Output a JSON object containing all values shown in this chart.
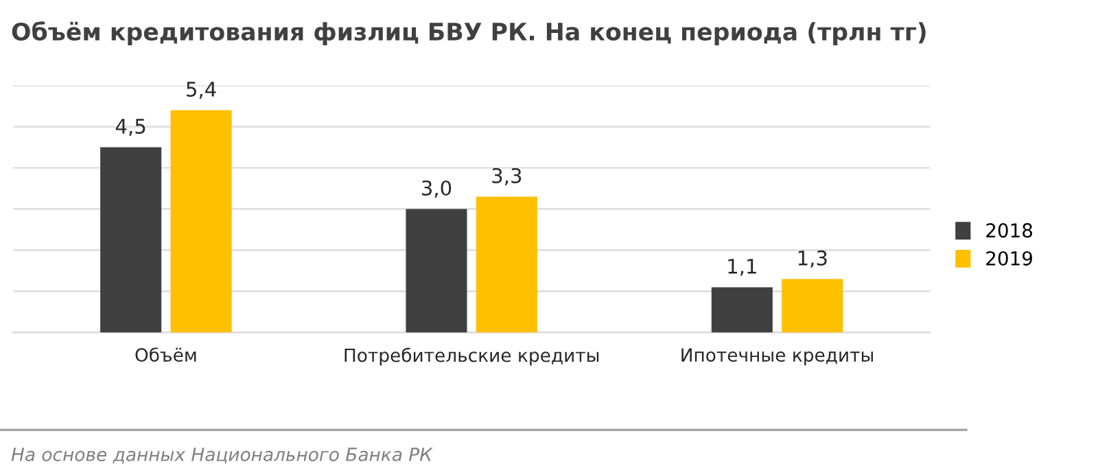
{
  "chart_data": {
    "type": "bar",
    "title": "Объём кредитования физлиц БВУ РК. На конец периода (трлн тг)",
    "categories": [
      "Объём",
      "Потребительские кредиты",
      "Ипотечные кредиты"
    ],
    "series": [
      {
        "name": "2018",
        "color": "#404040",
        "values": [
          4.5,
          3.0,
          1.1
        ],
        "value_labels": [
          "4,5",
          "3,0",
          "1,1"
        ]
      },
      {
        "name": "2019",
        "color": "#ffc000",
        "values": [
          5.4,
          3.3,
          1.3
        ],
        "value_labels": [
          "5,4",
          "3,3",
          "1,3"
        ]
      }
    ],
    "ylim": [
      0,
      6
    ],
    "yticks": [
      {
        "value": 0,
        "label": null
      },
      {
        "value": 1,
        "label": null
      },
      {
        "value": 2,
        "label": null
      },
      {
        "value": 3,
        "label": null
      },
      {
        "value": 4,
        "label": null
      },
      {
        "value": 5,
        "label": null
      },
      {
        "value": 6,
        "label": null
      }
    ],
    "tick_labels": "x",
    "grid": "y",
    "legend": "right",
    "annotations": [
      "На основе данных Национального Банка РК"
    ]
  }
}
